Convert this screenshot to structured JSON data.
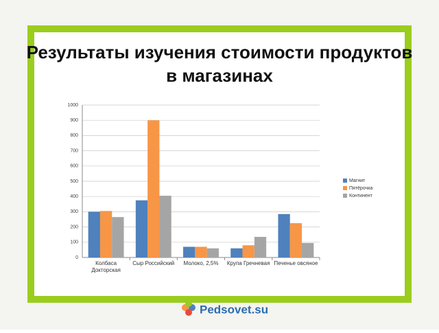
{
  "chart_data": {
    "type": "bar",
    "title": "Результаты изучения стоимости продуктов в магазинах",
    "categories": [
      "Колбаса Докторская",
      "Сыр Российский",
      "Молоко, 2,5%",
      "Крупа Гречневая",
      "Печенье овсяное"
    ],
    "series": [
      {
        "name": "Магнит",
        "color": "#4f81bd",
        "values": [
          300,
          375,
          70,
          60,
          285
        ]
      },
      {
        "name": "Пятёрочка",
        "color": "#f79646",
        "values": [
          305,
          900,
          70,
          80,
          225
        ]
      },
      {
        "name": "Континент",
        "color": "#a5a5a5",
        "values": [
          265,
          405,
          60,
          135,
          95
        ]
      }
    ],
    "ylim": [
      0,
      1000
    ],
    "yticks": [
      0,
      100,
      200,
      300,
      400,
      500,
      600,
      700,
      800,
      900,
      1000
    ],
    "grid": true,
    "legend": "right"
  },
  "footer": {
    "logo": "Pedsovet.su"
  }
}
